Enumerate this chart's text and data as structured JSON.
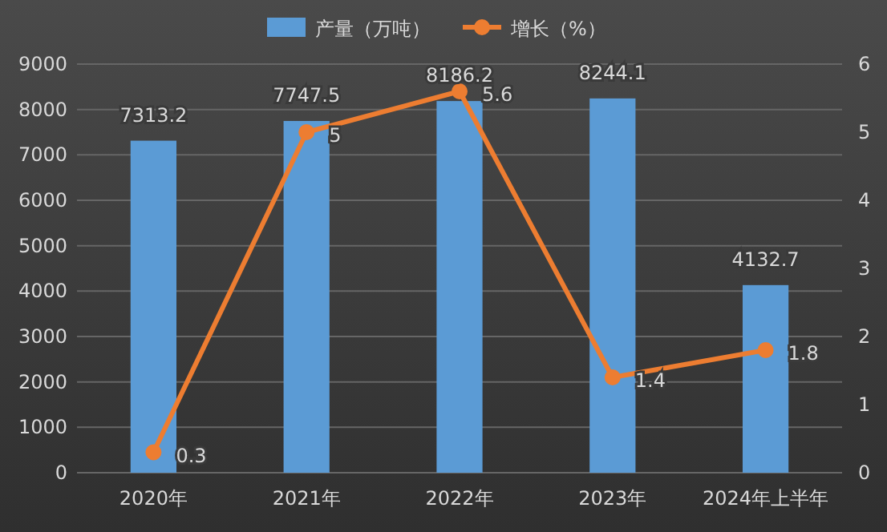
{
  "chart_data": {
    "type": "bar",
    "categories": [
      "2020年",
      "2021年",
      "2022年",
      "2023年",
      "2024年上半年"
    ],
    "series": [
      {
        "name": "产量（万吨）",
        "color": "#5b9bd5",
        "values": [
          7313.2,
          7747.5,
          8186.2,
          8244.1,
          4132.7
        ]
      },
      {
        "name": "增长（%）",
        "type": "line",
        "axis": "y2",
        "color": "#ed7d31",
        "values": [
          0.3,
          5,
          5.6,
          1.4,
          1.8
        ]
      }
    ],
    "ylim": [
      0,
      9000
    ],
    "yticks": [
      0,
      1000,
      2000,
      3000,
      4000,
      5000,
      6000,
      7000,
      8000,
      9000
    ],
    "y2lim": [
      0,
      6
    ],
    "y2ticks": [
      0,
      1,
      2,
      3,
      4,
      5,
      6
    ],
    "grid": "y",
    "legend": "top",
    "marker": "circle",
    "line_style": "solid",
    "data_labels": true
  }
}
